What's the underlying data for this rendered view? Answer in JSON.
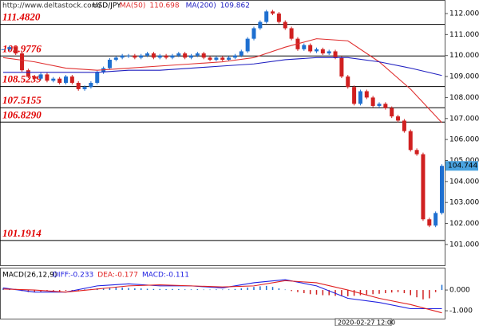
{
  "header": {
    "url": "http://www.deltastock.com/",
    "symbol": "USD/JPY"
  },
  "chart_data": [
    {
      "type": "candlestick",
      "values": [
        110.3,
        110.4,
        110.1,
        109.3,
        109.0,
        108.9,
        109.1,
        108.8,
        108.9,
        108.7,
        109.0,
        108.7,
        108.4,
        108.5,
        108.7,
        109.2,
        109.4,
        109.8,
        109.9,
        110.0,
        110.0,
        109.9,
        110.0,
        110.1,
        109.9,
        110.0,
        109.9,
        110.0,
        110.1,
        109.9,
        110.0,
        110.1,
        109.9,
        109.8,
        109.9,
        109.8,
        109.9,
        110.0,
        110.2,
        110.8,
        111.3,
        111.6,
        112.1,
        112.0,
        111.6,
        111.3,
        110.8,
        110.3,
        110.5,
        110.2,
        110.3,
        110.1,
        110.2,
        109.9,
        109.0,
        108.5,
        107.7,
        108.3,
        108.0,
        107.6,
        107.7,
        107.5,
        107.1,
        106.9,
        106.4,
        105.5,
        105.3,
        102.2,
        101.9,
        102.5,
        104.744
      ],
      "up_color": "#1e6fd0",
      "down_color": "#d02020",
      "series": [
        {
          "name": "MA(50)",
          "current": "110.698",
          "color": "#e03030",
          "x": [
            0,
            5,
            10,
            15,
            20,
            25,
            30,
            35,
            40,
            45,
            50,
            55,
            60,
            65,
            70
          ],
          "values": [
            109.9,
            109.7,
            109.4,
            109.3,
            109.4,
            109.5,
            109.6,
            109.7,
            109.9,
            110.4,
            110.8,
            110.7,
            109.7,
            108.4,
            106.8
          ]
        },
        {
          "name": "MA(200)",
          "current": "109.862",
          "color": "#2020c0",
          "x": [
            0,
            5,
            10,
            15,
            20,
            25,
            30,
            35,
            40,
            45,
            50,
            55,
            60,
            65,
            70
          ],
          "values": [
            109.2,
            109.2,
            109.2,
            109.2,
            109.3,
            109.3,
            109.4,
            109.5,
            109.6,
            109.8,
            109.9,
            109.9,
            109.7,
            109.4,
            109.05
          ]
        }
      ],
      "levels": [
        {
          "value": 111.482,
          "label": "111.4820"
        },
        {
          "value": 109.9776,
          "label": "109.9776"
        },
        {
          "value": 108.5239,
          "label": "108.5239"
        },
        {
          "value": 107.5155,
          "label": "107.5155"
        },
        {
          "value": 106.829,
          "label": "106.8290"
        },
        {
          "value": 101.1914,
          "label": "101.1914"
        }
      ],
      "last_price": {
        "value": 104.744,
        "label": "104.744"
      },
      "ylim": [
        100.01,
        112.645
      ],
      "yticks": [
        {
          "value": 101,
          "label": "101.000"
        },
        {
          "value": 102,
          "label": "102.000"
        },
        {
          "value": 103,
          "label": "103.000"
        },
        {
          "value": 104,
          "label": "104.000"
        },
        {
          "value": 105,
          "label": "105.000"
        },
        {
          "value": 106,
          "label": "106.000"
        },
        {
          "value": 107,
          "label": "107.000"
        },
        {
          "value": 108,
          "label": "108.000"
        },
        {
          "value": 109,
          "label": "109.000"
        },
        {
          "value": 110,
          "label": "110.000"
        },
        {
          "value": 111,
          "label": "111.000"
        },
        {
          "value": 112,
          "label": "112.000"
        }
      ]
    },
    {
      "type": "macd",
      "title": "MACD(26,12,9)",
      "histogram": [
        0.1,
        0.08,
        0.05,
        -0.05,
        -0.1,
        -0.1,
        -0.08,
        -0.05,
        -0.05,
        -0.06,
        -0.04,
        -0.05,
        -0.06,
        0.03,
        0.05,
        0.08,
        0.1,
        0.12,
        0.14,
        0.12,
        0.1,
        0.08,
        0.08,
        0.06,
        0.05,
        0.05,
        0.04,
        0.05,
        0.04,
        0.03,
        0.03,
        0.04,
        0.02,
        0.02,
        0.03,
        0.02,
        0.03,
        0.05,
        0.08,
        0.12,
        0.15,
        0.18,
        0.2,
        0.15,
        0.08,
        0.02,
        -0.05,
        -0.1,
        -0.15,
        -0.2,
        -0.22,
        -0.25,
        -0.25,
        -0.28,
        -0.3,
        -0.3,
        -0.28,
        -0.25,
        -0.22,
        -0.2,
        -0.18,
        -0.15,
        -0.12,
        -0.1,
        -0.15,
        -0.25,
        -0.35,
        -0.45,
        -0.4,
        -0.1,
        0.25
      ],
      "pos_color": "#1e6fd0",
      "neg_color": "#d02020",
      "series": [
        {
          "name": "DIFF:-0.233",
          "color": "#2020e0",
          "x": [
            0,
            5,
            10,
            15,
            20,
            25,
            30,
            35,
            40,
            45,
            50,
            55,
            60,
            65,
            70
          ],
          "values": [
            0.1,
            -0.1,
            -0.1,
            0.2,
            0.3,
            0.2,
            0.2,
            0.1,
            0.35,
            0.5,
            0.2,
            -0.4,
            -0.6,
            -0.9,
            -0.9
          ]
        },
        {
          "name": "DEA:-0.177",
          "color": "#e02020",
          "x": [
            0,
            5,
            10,
            15,
            20,
            25,
            30,
            35,
            40,
            45,
            50,
            55,
            60,
            65,
            70
          ],
          "values": [
            0.05,
            0.0,
            -0.1,
            0.05,
            0.2,
            0.25,
            0.2,
            0.15,
            0.2,
            0.45,
            0.35,
            0.0,
            -0.4,
            -0.7,
            -1.1
          ]
        }
      ],
      "histogram_name": "MACD:-0.111",
      "x_label": "2020-02-27 12:00",
      "ylim": [
        -1.38,
        1.04
      ],
      "yticks": [
        {
          "value": 0,
          "label": "0.000"
        },
        {
          "value": -1,
          "label": "-1.000"
        }
      ]
    }
  ]
}
